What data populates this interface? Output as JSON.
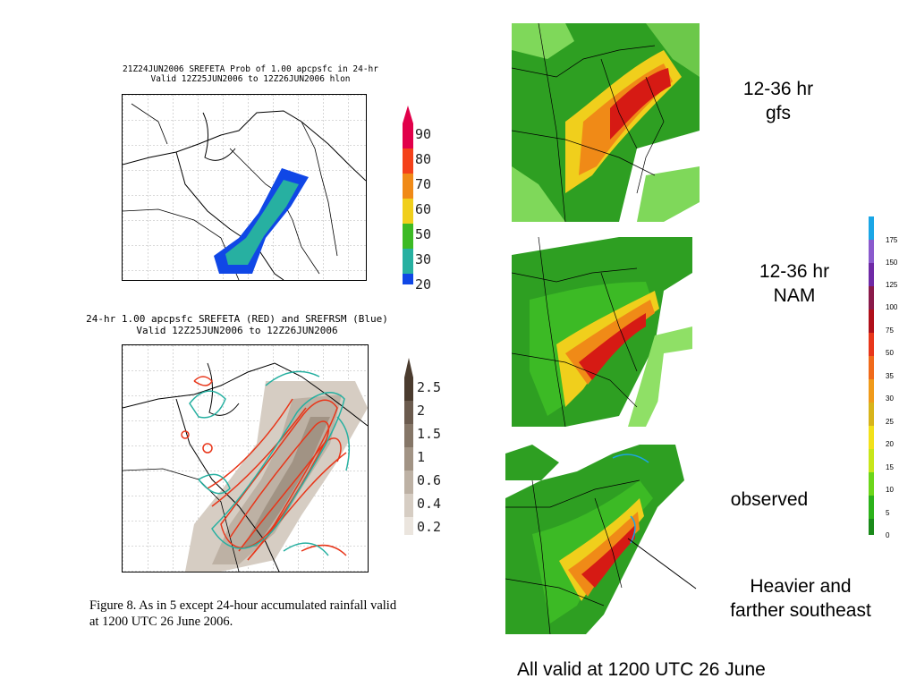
{
  "left_figure": {
    "top_panel": {
      "title_line1": "21Z24JUN2006  SREFETA  Prob of 1.00 apcpsfc in 24-hr",
      "title_line2": "Valid 12Z25JUN2006 to 12Z26JUN2006 hlon",
      "colorbar_labels": [
        "90",
        "80",
        "70",
        "60",
        "50",
        "30",
        "20"
      ],
      "colorbar_colors": [
        "#e1004a",
        "#f4411a",
        "#f08a17",
        "#f0cf1c",
        "#3cba25",
        "#27b0a1",
        "#1047e6"
      ]
    },
    "bottom_panel": {
      "title_line1": "24-hr 1.00 apcpsfc SREFETA (RED) and SREFRSM (Blue)",
      "title_line2": "Valid 12Z25JUN2006 to 12Z26JUN2006",
      "colorbar_labels": [
        "2.5",
        "2",
        "1.5",
        "1",
        "0.6",
        "0.4",
        "0.2"
      ],
      "colorbar_colors": [
        "#4a3b2e",
        "#6b5b4e",
        "#857667",
        "#a19384",
        "#bdb1a4",
        "#d6cdc3",
        "#ebe5de"
      ]
    },
    "caption_line1": "Figure 8. As in 5 except 24-hour accumulated rainfall valid",
    "caption_line2": "at 1200 UTC 26 June 2006."
  },
  "right_maps": {
    "gfs_label_line1": "12-36 hr",
    "gfs_label_line2": "gfs",
    "nam_label_line1": "12-36 hr",
    "nam_label_line2": "NAM",
    "observed_label": "observed",
    "annotation_line1": "Heavier and",
    "annotation_line2": "farther southeast"
  },
  "legend": {
    "ticks": [
      "175",
      "150",
      "125",
      "100",
      "75",
      "50",
      "35",
      "30",
      "25",
      "20",
      "15",
      "10",
      "5",
      "0"
    ],
    "colors": [
      "#1aa6e6",
      "#8a5acd",
      "#6f2aa6",
      "#8a1a4a",
      "#b0101a",
      "#e8361a",
      "#f06a1a",
      "#f09a1a",
      "#d8b41a",
      "#f2e11a",
      "#c8e61a",
      "#6cd61a",
      "#2cb21a",
      "#1a8a1a"
    ]
  },
  "footer": "All valid at 1200 UTC 26 June"
}
